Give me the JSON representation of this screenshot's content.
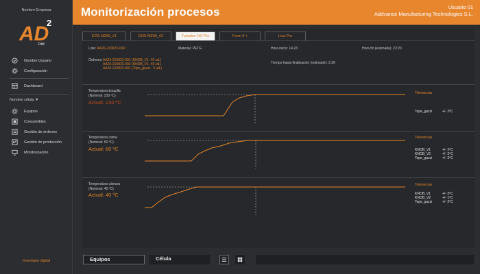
{
  "sidebar": {
    "company": "Nombre Empresa",
    "logo": {
      "letters": "AD",
      "superscript": "2",
      "sub": "Drill"
    },
    "items": [
      {
        "label": "Nombre Usuario",
        "icon": "user-check-icon"
      },
      {
        "label": "Configuración",
        "icon": "gear-icon"
      },
      {
        "label": "Dashboard",
        "icon": "dashboard-icon"
      }
    ],
    "cell_label": "Nombre célula ▼",
    "cell_items": [
      {
        "label": "Equipos",
        "icon": "gear-icon"
      },
      {
        "label": "Consumibles",
        "icon": "box-icon"
      },
      {
        "label": "Gestión de órdenes",
        "icon": "orders-icon"
      },
      {
        "label": "Gestión de producción",
        "icon": "production-icon"
      },
      {
        "label": "Monitorización",
        "icon": "monitor-icon"
      }
    ],
    "inventory": "Inventario digital"
  },
  "header": {
    "title": "Monitorización procesos",
    "user": "Usuario 01",
    "company": "Addvance Manufacturing Technologies S.L."
  },
  "tabs": [
    {
      "label": "EOS M290_#1",
      "active": false
    },
    {
      "label": "EOS M290_#2",
      "active": false
    },
    {
      "label": "Tumaker NX Pro",
      "active": true
    },
    {
      "label": "Form 3 +",
      "active": false
    },
    {
      "label": "Lisa Pro",
      "active": false
    }
  ],
  "info": {
    "lote_label": "Lote:",
    "lote_value": "AA26-210923-D6P",
    "material_label": "Material:",
    "material_value": "PETG",
    "hora_inicio": "Hora inicio: 14:23",
    "hora_fin": "Hora fin (estimada): 22:23",
    "ordenes_label": "Órdenes:",
    "ordenes": [
      "AA26-210923-001 (KNOB_V1- 40 ud.)",
      "AA26-210923-002 (KNOB_V1- 40 ud.)",
      "AA26-210923-001 (Tope_guzzi - 5 ud.)"
    ],
    "tiempo": "Tiempo hasta finalización (estimado): 2:26"
  },
  "sections": [
    {
      "title": "Temperatura boquilla",
      "nominal": "(Nominal: 230 ºC)",
      "actual": "Actual: 230 ºC",
      "tol_title": "Tolerancias",
      "tolerances": [
        {
          "name": "Tope_guzzi",
          "value": "+/- 2ºC"
        }
      ]
    },
    {
      "title": "Temperatura cama",
      "nominal": "(Nominal: 60 ºC)",
      "actual": "Actual: 60 ºC",
      "tol_title": "Tolerancias",
      "tolerances": [
        {
          "name": "KNOB_V1",
          "value": "+/- 2ºC"
        },
        {
          "name": "KNOB_V2",
          "value": "+/- 2ºC"
        },
        {
          "name": "Tope_guzzi",
          "value": "+/- 2ºC"
        }
      ]
    },
    {
      "title": "Temperatura cámara",
      "nominal": "(Nominal: 40 ºC)",
      "actual": "Actual: 40 ºC",
      "tol_title": "Tolerancias",
      "tolerances": [
        {
          "name": "KNOB_V1",
          "value": "+/- 3ºC"
        },
        {
          "name": "KNOB_V2",
          "value": "+/- 1ºC"
        },
        {
          "name": "Tope_guzzi",
          "value": "+/- 2ºC"
        }
      ]
    }
  ],
  "bottom": {
    "equipos": "Equipos",
    "celula": "Célula"
  },
  "colors": {
    "accent": "#e8862e",
    "background": "#2b2d30",
    "panel": "#26282b"
  }
}
